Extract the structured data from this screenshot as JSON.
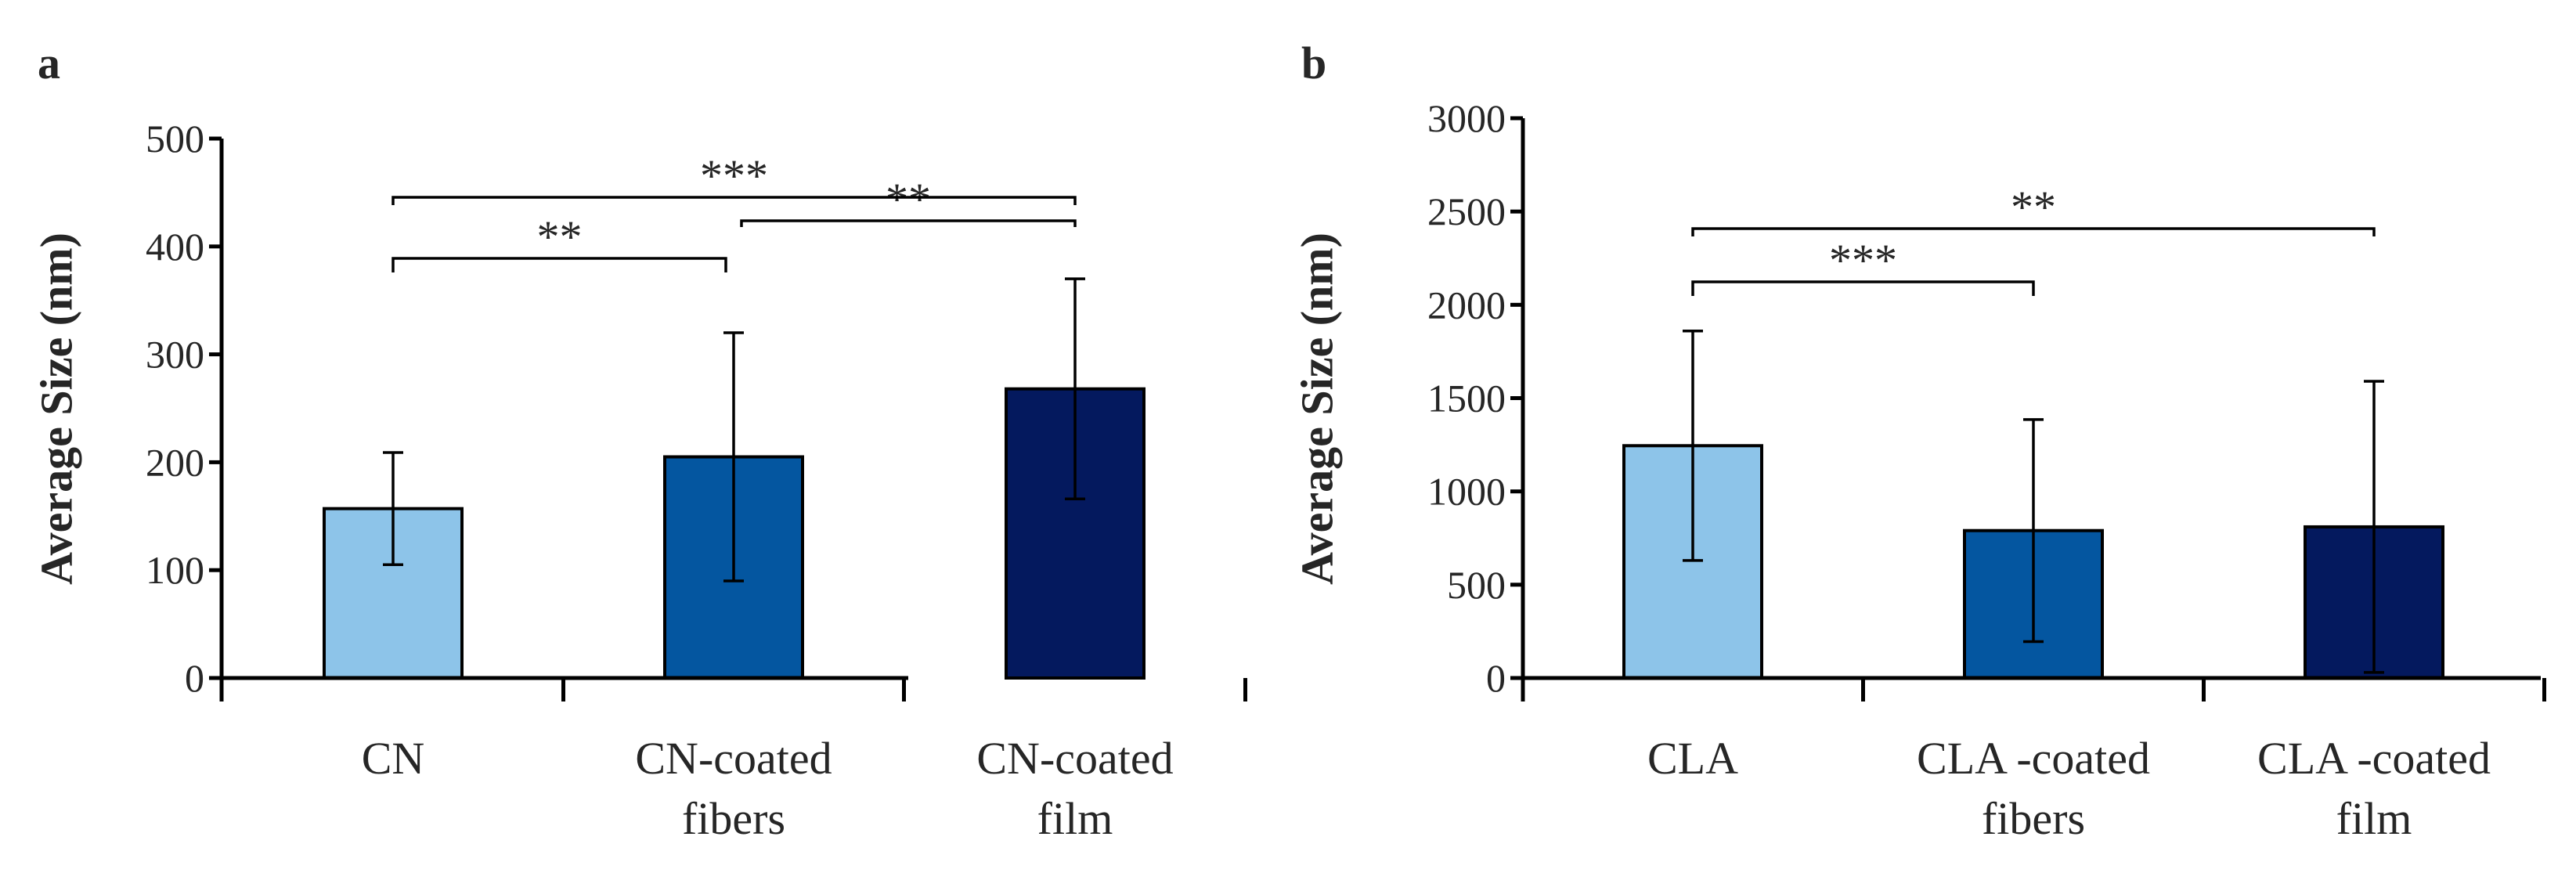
{
  "chart_data": [
    {
      "type": "bar",
      "panel_label": "a",
      "title": "",
      "xlabel": "",
      "ylabel": "Average Size (nm)",
      "ylim": [
        0,
        500
      ],
      "yticks": [
        "0",
        "100",
        "200",
        "300",
        "400",
        "500"
      ],
      "categories": [
        [
          "CN"
        ],
        [
          "CN-coated",
          "fibers"
        ],
        [
          "CN-coated",
          "film"
        ]
      ],
      "values": [
        157,
        205,
        268
      ],
      "errors": [
        52,
        115,
        102
      ],
      "colors": [
        "#8dc4e9",
        "#0456a0",
        "#04195e"
      ],
      "significance": [
        {
          "from": 0,
          "to": 1,
          "label": "**"
        },
        {
          "from": 1,
          "to": 2,
          "label": "**"
        },
        {
          "from": 0,
          "to": 2,
          "label": "***"
        }
      ]
    },
    {
      "type": "bar",
      "panel_label": "b",
      "title": "",
      "xlabel": "",
      "ylabel": "Average Size (nm)",
      "ylim": [
        0,
        3000
      ],
      "yticks": [
        "0",
        "500",
        "1000",
        "1500",
        "2000",
        "2500",
        "3000"
      ],
      "categories": [
        [
          "CLA"
        ],
        [
          "CLA -coated",
          "fibers"
        ],
        [
          "CLA -coated",
          "film"
        ]
      ],
      "values": [
        1245,
        790,
        810
      ],
      "errors": [
        615,
        595,
        780
      ],
      "colors": [
        "#8dc4e9",
        "#0456a0",
        "#04195e"
      ],
      "significance": [
        {
          "from": 0,
          "to": 1,
          "label": "***"
        },
        {
          "from": 0,
          "to": 2,
          "label": "**"
        }
      ]
    }
  ]
}
